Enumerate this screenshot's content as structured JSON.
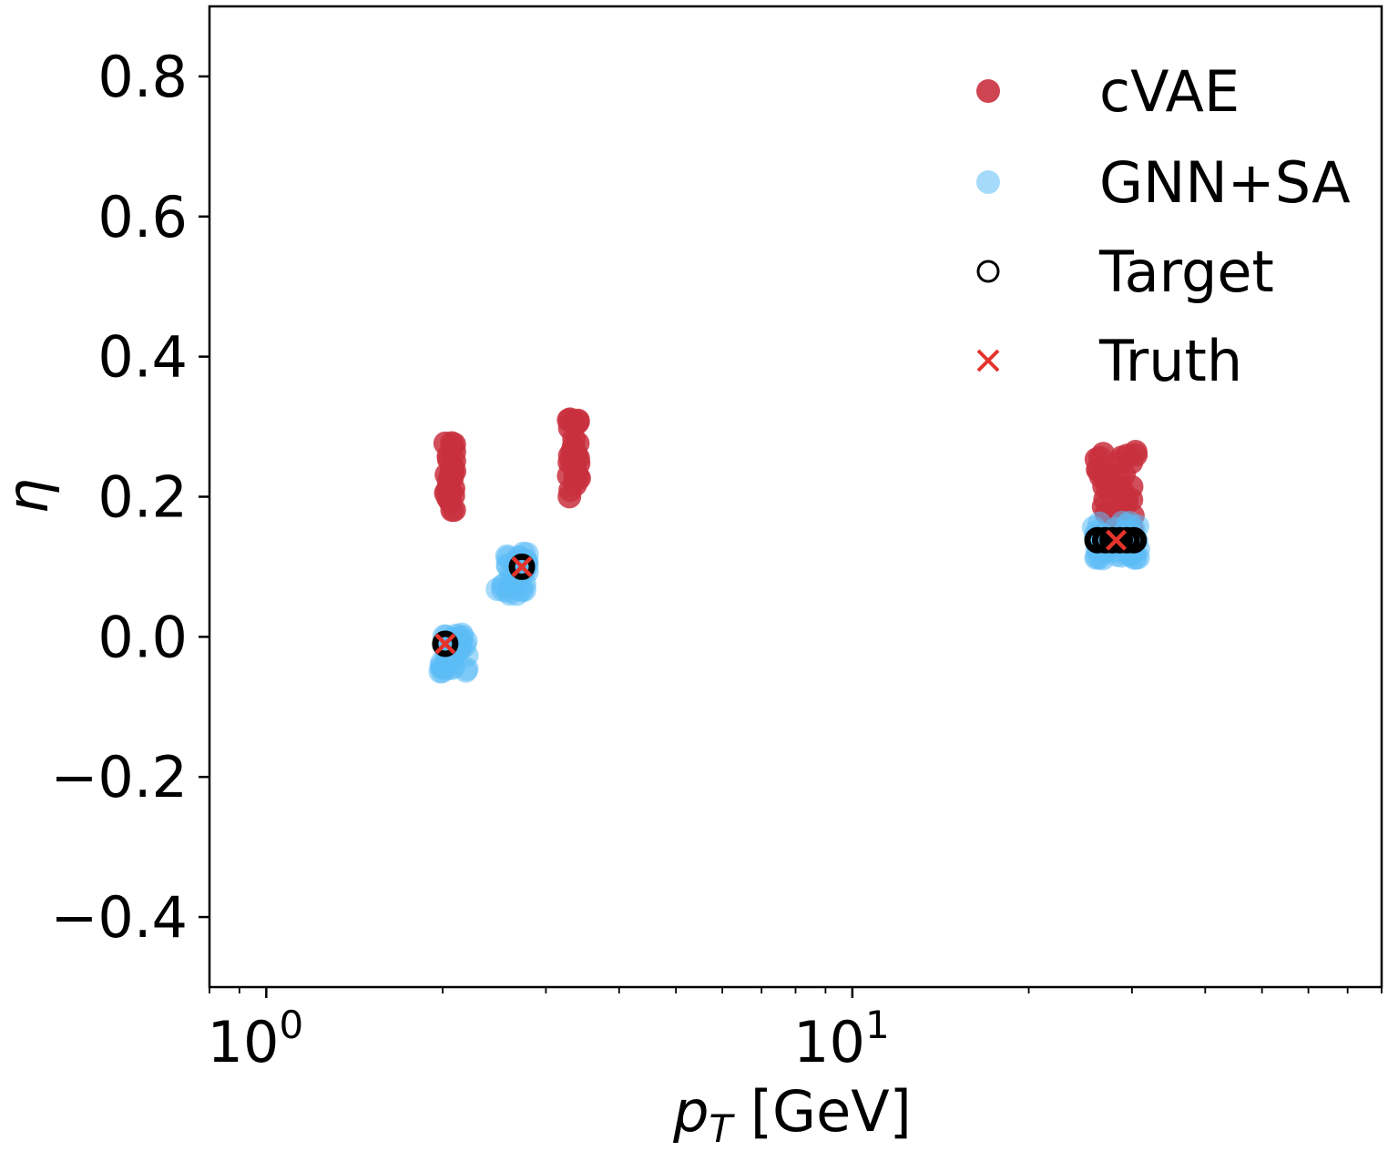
{
  "chart_data": {
    "type": "scatter",
    "title": "",
    "xlabel": {
      "main": "p",
      "sub": "T",
      "unit": " [GeV]"
    },
    "ylabel": "η",
    "xscale": "log",
    "xlim": [
      0.8,
      80
    ],
    "ylim": [
      -0.5,
      0.9
    ],
    "grid": false,
    "legend_position": "top-right",
    "x_ticks": [
      {
        "value": 1,
        "base": "10",
        "exp": "0"
      },
      {
        "value": 10,
        "base": "10",
        "exp": "1"
      }
    ],
    "y_ticks": [
      {
        "value": 0.8,
        "label": "0.8"
      },
      {
        "value": 0.6,
        "label": "0.6"
      },
      {
        "value": 0.4,
        "label": "0.4"
      },
      {
        "value": 0.2,
        "label": "0.2"
      },
      {
        "value": 0.0,
        "label": "0.0"
      },
      {
        "value": -0.2,
        "label": "−0.2"
      },
      {
        "value": -0.4,
        "label": "−0.4"
      }
    ],
    "series": [
      {
        "name": "cVAE",
        "color": "#c9303e",
        "marker": "filled-circle",
        "clusters": [
          {
            "x_range": [
              2.02,
              2.1
            ],
            "y_range": [
              0.175,
              0.285
            ],
            "n": 30
          },
          {
            "x_range": [
              3.28,
              3.42
            ],
            "y_range": [
              0.2,
              0.32
            ],
            "n": 30
          },
          {
            "x_range": [
              26.0,
              30.5
            ],
            "y_range": [
              0.15,
              0.265
            ],
            "n": 40
          }
        ]
      },
      {
        "name": "GNN+SA",
        "color": "#5bbcf5",
        "marker": "filled-circle",
        "clusters": [
          {
            "x_range": [
              1.98,
              2.2
            ],
            "y_range": [
              -0.05,
              0.005
            ],
            "n": 35
          },
          {
            "x_range": [
              2.48,
              2.8
            ],
            "y_range": [
              0.06,
              0.12
            ],
            "n": 35
          },
          {
            "x_range": [
              25.8,
              31.0
            ],
            "y_range": [
              0.11,
              0.165
            ],
            "n": 45
          }
        ]
      },
      {
        "name": "Target",
        "color": "#000000",
        "marker": "open-circle",
        "points": [
          {
            "x": 2.02,
            "y": -0.01
          },
          {
            "x": 2.73,
            "y": 0.1
          },
          {
            "x": 26.2,
            "y": 0.138
          },
          {
            "x": 27.0,
            "y": 0.138
          },
          {
            "x": 27.8,
            "y": 0.138
          },
          {
            "x": 28.6,
            "y": 0.138
          },
          {
            "x": 29.4,
            "y": 0.138
          },
          {
            "x": 30.2,
            "y": 0.138
          }
        ]
      },
      {
        "name": "Truth",
        "color": "#e4342b",
        "marker": "x",
        "points": [
          {
            "x": 2.02,
            "y": -0.01
          },
          {
            "x": 2.73,
            "y": 0.1
          },
          {
            "x": 28.2,
            "y": 0.138
          }
        ]
      }
    ]
  }
}
